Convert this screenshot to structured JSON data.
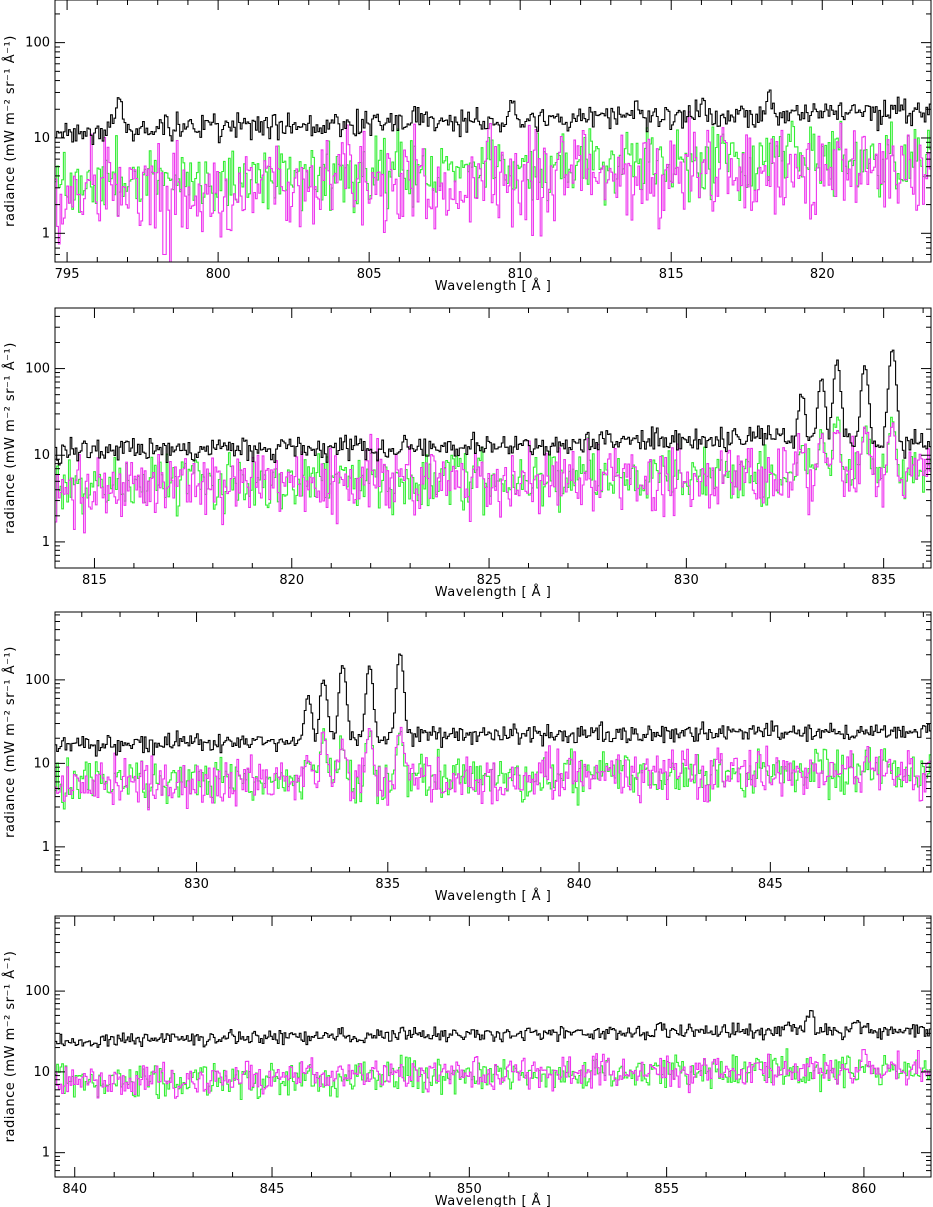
{
  "colors": {
    "background": "#ffffff",
    "axes": "#000000",
    "series_black": "#000000",
    "series_green": "#33ee33",
    "series_magenta": "#ee33ee"
  },
  "chart_data": [
    {
      "type": "line",
      "step": true,
      "xlabel": "Wavelength  [ Å ]",
      "ylabel": "radiance (mW m⁻² sr⁻¹ Å⁻¹)",
      "xlim": [
        794.6,
        823.6
      ],
      "ylim": [
        0.5,
        280
      ],
      "yscale": "log",
      "xticks": [
        795,
        800,
        805,
        810,
        815,
        820
      ],
      "yticks": [
        1,
        10,
        100
      ],
      "grid": false,
      "series": [
        {
          "color": "black",
          "baseline": [
            [
              794.6,
              11.5
            ],
            [
              805,
              14
            ],
            [
              815,
              17
            ],
            [
              823.6,
              18.5
            ]
          ],
          "noise": 0.06,
          "peaks": [
            [
              796.7,
              16,
              0.12
            ],
            [
              799.6,
              4,
              0.1
            ],
            [
              806.5,
              3,
              0.1
            ],
            [
              809.7,
              10,
              0.12
            ],
            [
              813.8,
              3,
              0.1
            ],
            [
              816.0,
              8,
              0.12
            ],
            [
              818.2,
              11,
              0.12
            ],
            [
              822.4,
              4,
              0.12
            ]
          ]
        },
        {
          "color": "green",
          "baseline": [
            [
              794.6,
              3.3
            ],
            [
              805,
              4.5
            ],
            [
              815,
              5.3
            ],
            [
              823.6,
              6.0
            ]
          ],
          "noise": 0.16,
          "peaks": []
        },
        {
          "color": "magenta",
          "baseline": [
            [
              794.6,
              2.6
            ],
            [
              805,
              3.3
            ],
            [
              815,
              4.2
            ],
            [
              823.6,
              4.8
            ]
          ],
          "noise": 0.22,
          "peaks": [],
          "dips": [
            [
              798.4,
              0.5
            ],
            [
              798.2,
              0.6
            ],
            [
              800.3,
              1.1
            ],
            [
              796.0,
              1.6
            ]
          ]
        }
      ]
    },
    {
      "type": "line",
      "step": true,
      "xlabel": "Wavelength  [ Å ]",
      "ylabel": "radiance (mW m⁻² sr⁻¹ Å⁻¹)",
      "xlim": [
        814,
        836.2
      ],
      "ylim": [
        0.5,
        500
      ],
      "yscale": "log",
      "xticks": [
        815,
        820,
        825,
        830,
        835
      ],
      "yticks": [
        1,
        10,
        100
      ],
      "grid": false,
      "series": [
        {
          "color": "black",
          "baseline": [
            [
              814,
              11
            ],
            [
              825,
              13
            ],
            [
              832,
              16
            ],
            [
              836.2,
              13
            ]
          ],
          "noise": 0.06,
          "peaks": [
            [
              832.9,
              35,
              0.1
            ],
            [
              833.4,
              62,
              0.1
            ],
            [
              833.8,
              108,
              0.1
            ],
            [
              834.5,
              94,
              0.1
            ],
            [
              835.2,
              152,
              0.1
            ]
          ]
        },
        {
          "color": "green",
          "baseline": [
            [
              814,
              4.5
            ],
            [
              825,
              5.5
            ],
            [
              836.2,
              6.0
            ]
          ],
          "noise": 0.14,
          "peaks": [
            [
              832.9,
              8,
              0.1
            ],
            [
              833.4,
              12,
              0.1
            ],
            [
              833.8,
              17,
              0.1
            ],
            [
              834.5,
              14,
              0.1
            ],
            [
              835.2,
              20,
              0.1
            ]
          ]
        },
        {
          "color": "magenta",
          "baseline": [
            [
              814,
              3.8
            ],
            [
              825,
              5.3
            ],
            [
              836.2,
              5.5
            ]
          ],
          "noise": 0.18,
          "peaks": [
            [
              832.9,
              7,
              0.1
            ],
            [
              833.4,
              11,
              0.1
            ],
            [
              833.8,
              15,
              0.1
            ],
            [
              834.5,
              12,
              0.1
            ],
            [
              835.2,
              18,
              0.1
            ]
          ]
        }
      ]
    },
    {
      "type": "line",
      "step": true,
      "xlabel": "Wavelength  [ Å ]",
      "ylabel": "radiance (mW m⁻² sr⁻¹ Å⁻¹)",
      "xlim": [
        826.3,
        849.2
      ],
      "ylim": [
        0.5,
        650
      ],
      "yscale": "log",
      "xticks": [
        830,
        835,
        840,
        845
      ],
      "yticks": [
        1,
        10,
        100
      ],
      "grid": false,
      "series": [
        {
          "color": "black",
          "baseline": [
            [
              826.3,
              16
            ],
            [
              832,
              19
            ],
            [
              836,
              21
            ],
            [
              849.2,
              24
            ]
          ],
          "noise": 0.05,
          "peaks": [
            [
              832.9,
              45,
              0.1
            ],
            [
              833.3,
              85,
              0.1
            ],
            [
              833.8,
              135,
              0.1
            ],
            [
              834.5,
              125,
              0.1
            ],
            [
              835.3,
              185,
              0.1
            ]
          ]
        },
        {
          "color": "green",
          "baseline": [
            [
              826.3,
              5.8
            ],
            [
              837,
              6.8
            ],
            [
              849.2,
              8.2
            ]
          ],
          "noise": 0.12,
          "peaks": [
            [
              832.9,
              6,
              0.1
            ],
            [
              833.3,
              14,
              0.1
            ],
            [
              833.8,
              10,
              0.1
            ],
            [
              834.5,
              16,
              0.1
            ],
            [
              835.3,
              18,
              0.1
            ]
          ]
        },
        {
          "color": "magenta",
          "baseline": [
            [
              826.3,
              5.5
            ],
            [
              837,
              6.6
            ],
            [
              849.2,
              8.0
            ]
          ],
          "noise": 0.14,
          "peaks": [
            [
              832.9,
              8,
              0.1
            ],
            [
              833.3,
              18,
              0.1
            ],
            [
              833.8,
              12,
              0.1
            ],
            [
              834.5,
              20,
              0.1
            ],
            [
              835.3,
              19,
              0.1
            ]
          ]
        }
      ]
    },
    {
      "type": "line",
      "step": true,
      "xlabel": "Wavelength  [ Å ]",
      "ylabel": "radiance (mW m⁻² sr⁻¹ Å⁻¹)",
      "xlim": [
        839.5,
        861.7
      ],
      "ylim": [
        0.5,
        850
      ],
      "yscale": "log",
      "xticks": [
        840,
        845,
        850,
        855,
        860
      ],
      "yticks": [
        1,
        10,
        100
      ],
      "grid": false,
      "series": [
        {
          "color": "black",
          "baseline": [
            [
              839.5,
              24
            ],
            [
              845,
              27
            ],
            [
              850,
              29
            ],
            [
              856,
              31
            ],
            [
              861.7,
              32
            ]
          ],
          "noise": 0.04,
          "peaks": [
            [
              854.8,
              8,
              0.12
            ],
            [
              858.1,
              8,
              0.12
            ],
            [
              858.6,
              22,
              0.12
            ],
            [
              859.8,
              10,
              0.12
            ]
          ]
        },
        {
          "color": "green",
          "baseline": [
            [
              839.5,
              7.5
            ],
            [
              850,
              9
            ],
            [
              861.7,
              11
            ]
          ],
          "noise": 0.09,
          "peaks": []
        },
        {
          "color": "magenta",
          "baseline": [
            [
              839.5,
              7.2
            ],
            [
              850,
              9.3
            ],
            [
              861.7,
              11
            ]
          ],
          "noise": 0.09,
          "peaks": []
        }
      ]
    }
  ]
}
